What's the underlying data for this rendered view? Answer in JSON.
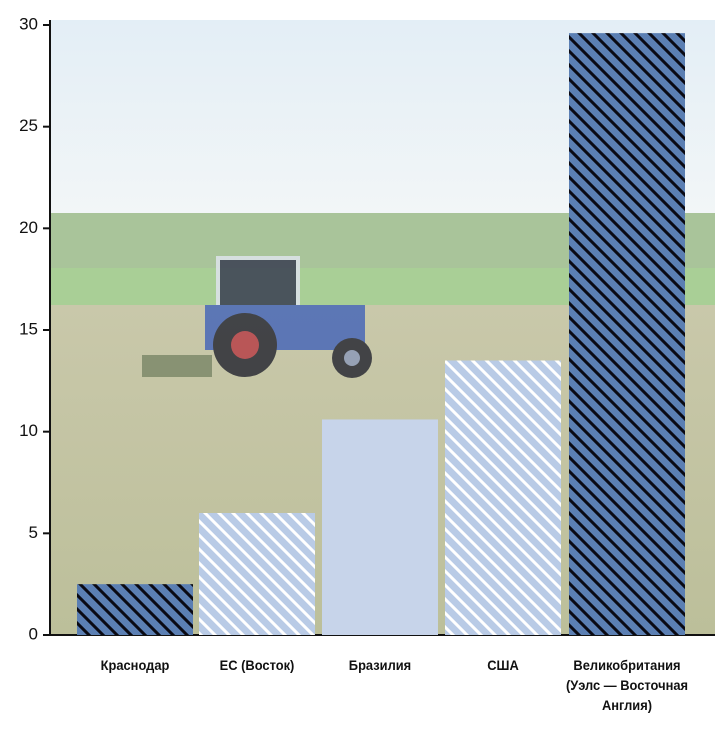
{
  "chart_data": {
    "type": "bar",
    "categories": [
      "Краснодар",
      "ЕС (Восток)",
      "Бразилия",
      "США",
      "Великобритания\n(Уэлс — Восточная\nАнглия)"
    ],
    "values": [
      2.5,
      6,
      10.6,
      13.5,
      29.6
    ],
    "colors": [
      "#5b7fb3",
      "#b9cbe6",
      "#c7d4ea",
      "#b9cbe6",
      "#5b7fb3"
    ],
    "hatch_colors": [
      "#0a0a14",
      "#ffffff",
      null,
      "#ffffff",
      "#0a0a14"
    ],
    "ylim": [
      0,
      30
    ],
    "yticks": [
      0,
      5,
      10,
      15,
      20,
      25,
      30
    ]
  }
}
